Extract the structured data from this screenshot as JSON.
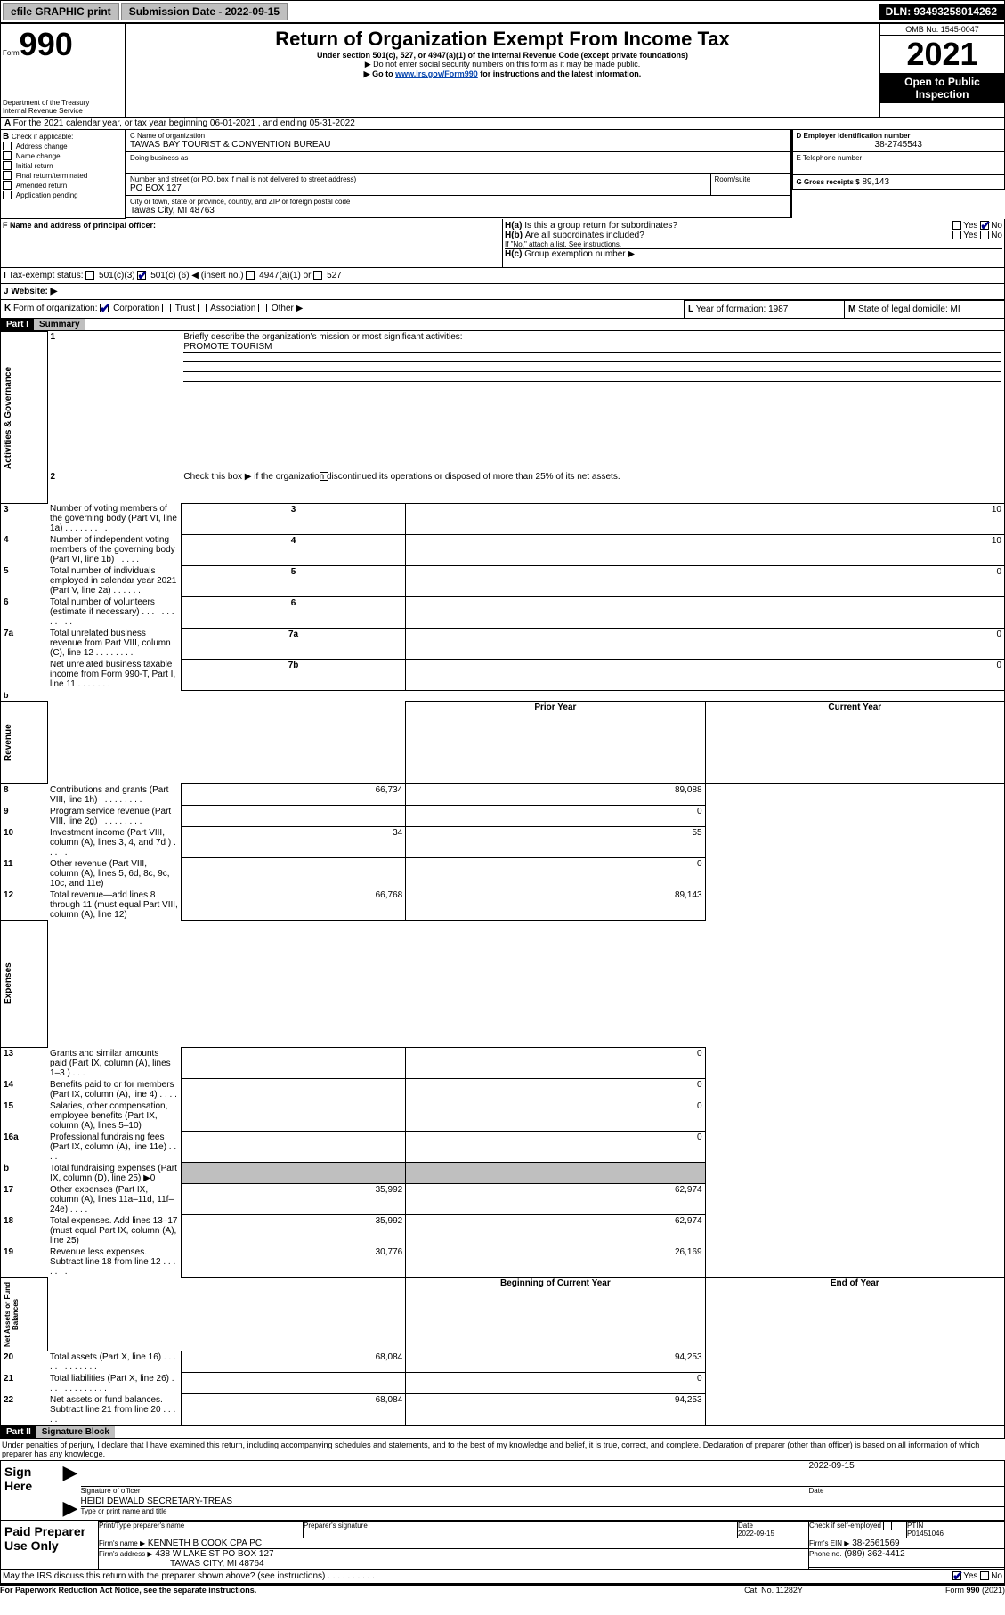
{
  "topbar": {
    "efile": "efile GRAPHIC print",
    "submission_label": "Submission Date - 2022-09-15",
    "dln": "DLN: 93493258014262"
  },
  "header": {
    "form_word": "Form",
    "form_num": "990",
    "title": "Return of Organization Exempt From Income Tax",
    "subtitle": "Under section 501(c), 527, or 4947(a)(1) of the Internal Revenue Code (except private foundations)",
    "note1": "▶ Do not enter social security numbers on this form as it may be made public.",
    "note2_pre": "▶ Go to ",
    "note2_link": "www.irs.gov/Form990",
    "note2_post": " for instructions and the latest information.",
    "dept": "Department of the Treasury",
    "irs": "Internal Revenue Service",
    "omb": "OMB No. 1545-0047",
    "year": "2021",
    "open_public": "Open to Public Inspection"
  },
  "A": {
    "line": "For the 2021 calendar year, or tax year beginning 06-01-2021   , and ending 05-31-2022"
  },
  "B": {
    "label": "Check if applicable:",
    "opts": [
      "Address change",
      "Name change",
      "Initial return",
      "Final return/terminated",
      "Amended return",
      "Application pending"
    ]
  },
  "C": {
    "name_label": "C Name of organization",
    "name": "TAWAS BAY TOURIST & CONVENTION BUREAU",
    "dba_label": "Doing business as",
    "street_label": "Number and street (or P.O. box if mail is not delivered to street address)",
    "room_label": "Room/suite",
    "street": "PO BOX 127",
    "city_label": "City or town, state or province, country, and ZIP or foreign postal code",
    "city": "Tawas City, MI  48763"
  },
  "D": {
    "label": "D Employer identification number",
    "value": "38-2745543"
  },
  "E": {
    "label": "E Telephone number"
  },
  "G": {
    "label": "G Gross receipts $",
    "value": "89,143"
  },
  "F": {
    "label": "F  Name and address of principal officer:"
  },
  "H": {
    "a": "Is this a group return for subordinates?",
    "b": "Are all subordinates included?",
    "b_note": "If \"No,\" attach a list. See instructions.",
    "c": "Group exemption number ▶",
    "yes": "Yes",
    "no": "No"
  },
  "I": {
    "label": "Tax-exempt status:",
    "c3": "501(c)(3)",
    "c_pre": "501(c) (",
    "c_num": "6",
    "c_post": ") ◀ (insert no.)",
    "a1": "4947(a)(1) or",
    "s527": "527"
  },
  "J": {
    "label": "Website: ▶"
  },
  "K": {
    "label": "Form of organization:",
    "opts": [
      "Corporation",
      "Trust",
      "Association",
      "Other ▶"
    ]
  },
  "L": {
    "label": "Year of formation:",
    "value": "1987"
  },
  "M": {
    "label": "State of legal domicile:",
    "value": "MI"
  },
  "partI": {
    "header": "Part I",
    "title": "Summary"
  },
  "summary": {
    "q1": "Briefly describe the organization's mission or most significant activities:",
    "q1_ans": "PROMOTE TOURISM",
    "q2": "Check this box ▶         if the organization discontinued its operations or disposed of more than 25% of its net assets.",
    "rows_ag": [
      {
        "n": "3",
        "t": "Number of voting members of the governing body (Part VI, line 1a)   .    .    .    .    .    .    .    .    .",
        "box": "3",
        "v": "10"
      },
      {
        "n": "4",
        "t": "Number of independent voting members of the governing body (Part VI, line 1b)   .    .    .    .    .",
        "box": "4",
        "v": "10"
      },
      {
        "n": "5",
        "t": "Total number of individuals employed in calendar year 2021 (Part V, line 2a)   .    .    .    .    .    .",
        "box": "5",
        "v": "0"
      },
      {
        "n": "6",
        "t": "Total number of volunteers (estimate if necessary)   .    .    .    .    .    .    .    .    .    .    .    .",
        "box": "6",
        "v": ""
      },
      {
        "n": "7a",
        "t": "Total unrelated business revenue from Part VIII, column (C), line 12   .    .    .    .    .    .    .    .",
        "box": "7a",
        "v": "0"
      },
      {
        "n": "",
        "t": "Net unrelated business taxable income from Form 990-T, Part I, line 11   .    .    .    .    .    .    .",
        "box": "7b",
        "v": "0"
      }
    ],
    "col_prior": "Prior Year",
    "col_current": "Current Year",
    "rows_rev": [
      {
        "n": "8",
        "t": "Contributions and grants (Part VIII, line 1h)   .    .    .    .    .    .    .    .    .",
        "p": "66,734",
        "c": "89,088"
      },
      {
        "n": "9",
        "t": "Program service revenue (Part VIII, line 2g)   .    .    .    .    .    .    .    .    .",
        "p": "",
        "c": "0"
      },
      {
        "n": "10",
        "t": "Investment income (Part VIII, column (A), lines 3, 4, and 7d )   .    .    .    .    .",
        "p": "34",
        "c": "55"
      },
      {
        "n": "11",
        "t": "Other revenue (Part VIII, column (A), lines 5, 6d, 8c, 9c, 10c, and 11e)",
        "p": "",
        "c": "0"
      },
      {
        "n": "12",
        "t": "Total revenue—add lines 8 through 11 (must equal Part VIII, column (A), line 12)",
        "p": "66,768",
        "c": "89,143"
      }
    ],
    "rows_exp": [
      {
        "n": "13",
        "t": "Grants and similar amounts paid (Part IX, column (A), lines 1–3 )   .    .    .",
        "p": "",
        "c": "0"
      },
      {
        "n": "14",
        "t": "Benefits paid to or for members (Part IX, column (A), line 4)   .    .    .    .",
        "p": "",
        "c": "0"
      },
      {
        "n": "15",
        "t": "Salaries, other compensation, employee benefits (Part IX, column (A), lines 5–10)",
        "p": "",
        "c": "0"
      },
      {
        "n": "16a",
        "t": "Professional fundraising fees (Part IX, column (A), line 11e)   .    .    .    .",
        "p": "",
        "c": "0"
      },
      {
        "n": "b",
        "t": "Total fundraising expenses (Part IX, column (D), line 25) ▶0",
        "p": "gray",
        "c": "gray"
      },
      {
        "n": "17",
        "t": "Other expenses (Part IX, column (A), lines 11a–11d, 11f–24e)   .    .    .    .",
        "p": "35,992",
        "c": "62,974"
      },
      {
        "n": "18",
        "t": "Total expenses. Add lines 13–17 (must equal Part IX, column (A), line 25)",
        "p": "35,992",
        "c": "62,974"
      },
      {
        "n": "19",
        "t": "Revenue less expenses. Subtract line 18 from line 12   .    .    .    .    .    .    .",
        "p": "30,776",
        "c": "26,169"
      }
    ],
    "col_begin": "Beginning of Current Year",
    "col_end": "End of Year",
    "rows_na": [
      {
        "n": "20",
        "t": "Total assets (Part X, line 16)   .    .    .    .    .    .    .    .    .    .    .    .    .",
        "p": "68,084",
        "c": "94,253"
      },
      {
        "n": "21",
        "t": "Total liabilities (Part X, line 26)   .    .    .    .    .    .    .    .    .    .    .    .    .",
        "p": "",
        "c": "0"
      },
      {
        "n": "22",
        "t": "Net assets or fund balances. Subtract line 21 from line 20   .    .    .    .    .",
        "p": "68,084",
        "c": "94,253"
      }
    ],
    "side_ag": "Activities & Governance",
    "side_rev": "Revenue",
    "side_exp": "Expenses",
    "side_na": "Net Assets or Fund Balances"
  },
  "partII": {
    "header": "Part II",
    "title": "Signature Block"
  },
  "sig": {
    "perjury": "Under penalties of perjury, I declare that I have examined this return, including accompanying schedules and statements, and to the best of my knowledge and belief, it is true, correct, and complete. Declaration of preparer (other than officer) is based on all information of which preparer has any knowledge.",
    "sign_here": "Sign Here",
    "sig_officer": "Signature of officer",
    "date": "Date",
    "date_val": "2022-09-15",
    "name": "HEIDI DEWALD  SECRETARY-TREAS",
    "name_label": "Type or print name and title",
    "paid": "Paid Preparer Use Only",
    "pt_name": "Print/Type preparer's name",
    "pt_sig": "Preparer's signature",
    "pt_date": "Date",
    "pt_date_val": "2022-09-15",
    "self_emp": "Check        if self-employed",
    "ptin_label": "PTIN",
    "ptin": "P01451046",
    "firm_name_label": "Firm's name    ▶",
    "firm_name": "KENNETH B COOK CPA PC",
    "firm_ein_label": "Firm's EIN ▶",
    "firm_ein": "38-2561569",
    "firm_addr_label": "Firm's address ▶",
    "firm_addr1": "438 W LAKE ST PO BOX 127",
    "firm_addr2": "TAWAS CITY, MI  48764",
    "firm_phone_label": "Phone no.",
    "firm_phone": "(989) 362-4412",
    "discuss": "May the IRS discuss this return with the preparer shown above? (see instructions)   .    .    .    .    .    .    .    .    .    .",
    "paperwork": "For Paperwork Reduction Act Notice, see the separate instructions.",
    "catno": "Cat. No. 11282Y",
    "form_foot": "Form 990 (2021)"
  }
}
